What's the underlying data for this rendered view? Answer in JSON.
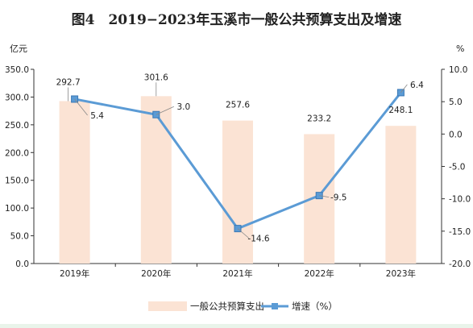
{
  "title": "图4　2019−2023年玉溪市一般公共预算支出及增速",
  "chart_data": {
    "type": "bar",
    "categories": [
      "2019年",
      "2020年",
      "2021年",
      "2022年",
      "2023年"
    ],
    "series": [
      {
        "name": "一般公共预算支出",
        "type": "bar",
        "axis": "left",
        "values": [
          292.7,
          301.6,
          257.6,
          233.2,
          248.1
        ],
        "color": "#fbe3d4"
      },
      {
        "name": "增速（%）",
        "type": "line",
        "axis": "right",
        "values": [
          5.4,
          3.0,
          -14.6,
          -9.5,
          6.4
        ],
        "color": "#5b9bd5"
      }
    ],
    "bar_labels": [
      "292.7",
      "301.6",
      "257.6",
      "233.2",
      "248.1"
    ],
    "line_labels": [
      "5.4",
      "3.0",
      "-14.6",
      "-9.5",
      "6.4"
    ],
    "ylabel_left": "亿元",
    "ylabel_right": "%",
    "ylim_left": [
      0,
      350
    ],
    "ylim_right": [
      -20,
      10
    ],
    "yticks_left": [
      "0.0",
      "50.0",
      "100.0",
      "150.0",
      "200.0",
      "250.0",
      "300.0",
      "350.0"
    ],
    "yticks_right": [
      "-20.0",
      "-15.0",
      "-10.0",
      "-5.0",
      "0.0",
      "5.0",
      "10.0"
    ],
    "grid": false,
    "legend": "bottom"
  }
}
